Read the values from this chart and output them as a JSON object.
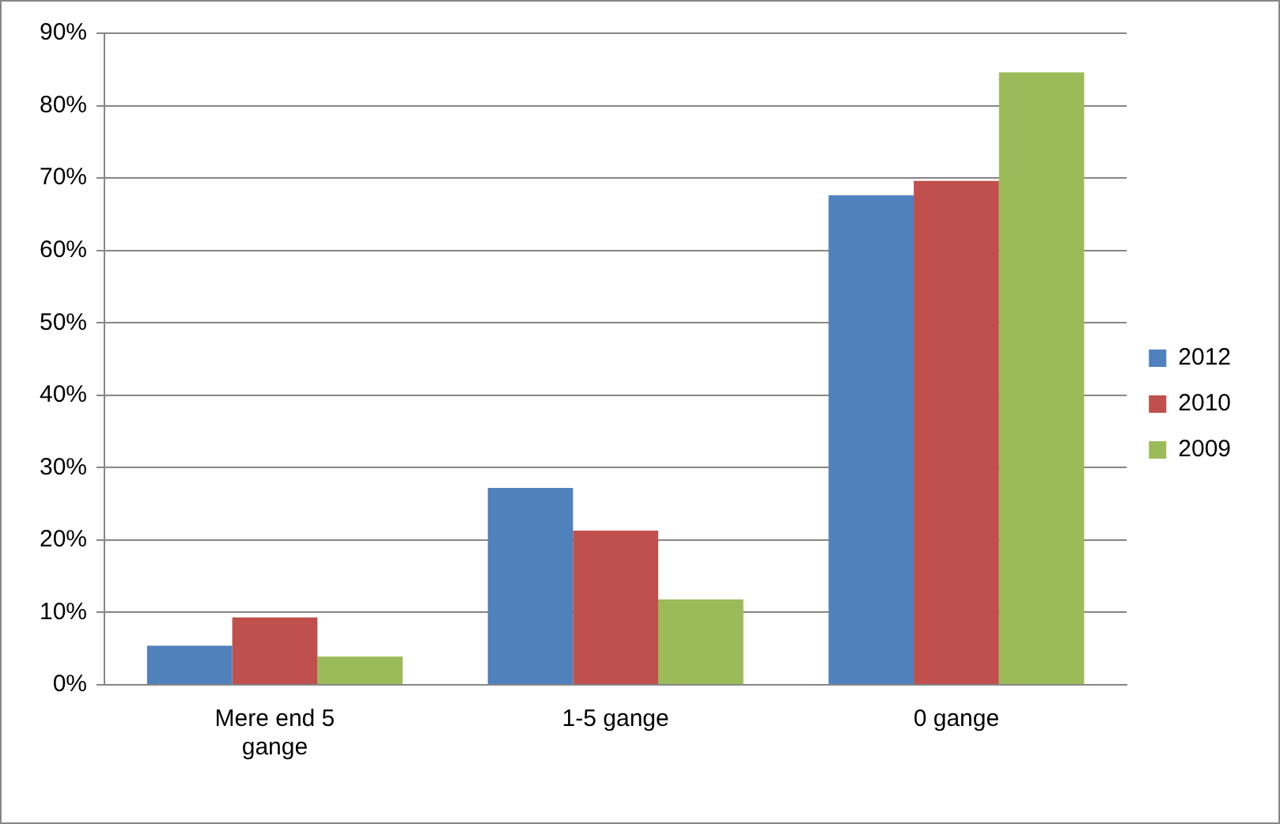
{
  "chart_data": {
    "type": "bar",
    "categories": [
      "Mere end 5 gange",
      "1-5 gange",
      "0 gange"
    ],
    "series": [
      {
        "name": "2012",
        "color": "#4f81bd",
        "values": [
          5.4,
          27.2,
          67.6
        ]
      },
      {
        "name": "2010",
        "color": "#c0504d",
        "values": [
          9.3,
          21.3,
          69.6
        ]
      },
      {
        "name": "2009",
        "color": "#9bbb59",
        "values": [
          3.9,
          11.8,
          84.6
        ]
      }
    ],
    "ylim": [
      0,
      90
    ],
    "yticks": [
      {
        "value": 0,
        "label": "0%"
      },
      {
        "value": 10,
        "label": "10%"
      },
      {
        "value": 20,
        "label": "20%"
      },
      {
        "value": 30,
        "label": "30%"
      },
      {
        "value": 40,
        "label": "40%"
      },
      {
        "value": 50,
        "label": "50%"
      },
      {
        "value": 60,
        "label": "60%"
      },
      {
        "value": 70,
        "label": "70%"
      },
      {
        "value": 80,
        "label": "80%"
      },
      {
        "value": 90,
        "label": "90%"
      }
    ],
    "grid": "y",
    "legend": "right"
  }
}
